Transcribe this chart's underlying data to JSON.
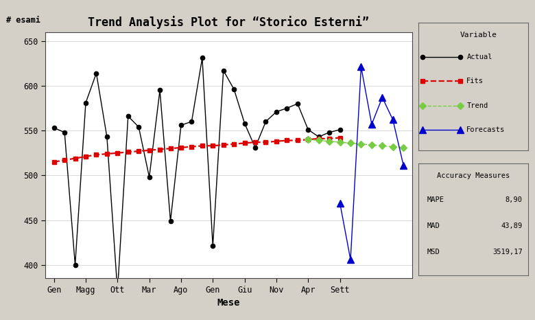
{
  "title": "Trend Analysis Plot for “Storico Esterni”",
  "ylabel": "# esami",
  "xlabel": "Mese",
  "background_color": "#d4d0c8",
  "plot_bg_color": "#ffffff",
  "x_tick_labels": [
    "Gen",
    "Magg",
    "Ott",
    "Mar",
    "Ago",
    "Gen",
    "Giu",
    "Nov",
    "Apr",
    "Sett"
  ],
  "x_tick_positions": [
    0,
    3,
    6,
    9,
    12,
    15,
    18,
    21,
    24,
    27
  ],
  "actual_x": [
    0,
    1,
    2,
    3,
    4,
    5,
    6,
    7,
    8,
    9,
    10,
    11,
    12,
    13,
    14,
    15,
    16,
    17,
    18,
    19,
    20,
    21,
    22,
    23,
    24,
    25,
    26,
    27
  ],
  "actual_y": [
    553,
    548,
    400,
    581,
    614,
    543,
    371,
    566,
    554,
    498,
    595,
    449,
    556,
    560,
    631,
    421,
    617,
    596,
    558,
    531,
    560,
    571,
    575,
    580,
    551,
    543,
    548,
    551
  ],
  "fits_x": [
    0,
    1,
    2,
    3,
    4,
    5,
    6,
    7,
    8,
    9,
    10,
    11,
    12,
    13,
    14,
    15,
    16,
    17,
    18,
    19,
    20,
    21,
    22,
    23,
    24,
    25,
    26,
    27
  ],
  "fits_y": [
    515,
    517,
    519,
    521,
    523,
    524,
    525,
    526,
    527,
    528,
    529,
    530,
    531,
    532,
    533,
    533,
    534,
    535,
    536,
    537,
    537,
    538,
    539,
    539,
    540,
    541,
    541,
    542
  ],
  "trend_x": [
    24,
    25,
    26,
    27,
    28,
    29,
    30,
    31,
    32,
    33
  ],
  "trend_y": [
    540,
    539,
    538,
    537,
    536,
    535,
    534,
    533,
    532,
    531
  ],
  "forecast_x": [
    27,
    28,
    29,
    30,
    31,
    32,
    33
  ],
  "forecast_y": [
    469,
    406,
    621,
    557,
    587,
    562,
    511
  ],
  "ylim": [
    385,
    660
  ],
  "yticks": [
    400,
    450,
    500,
    550,
    600,
    650
  ],
  "xlim": [
    -0.8,
    33.8
  ],
  "actual_color": "#000000",
  "fits_color": "#dd0000",
  "trend_color": "#77cc44",
  "forecast_color": "#0000cc",
  "legend1_title": "Variable",
  "legend2_title": "Accuracy Measures",
  "mape": "8,90",
  "mad": "43,89",
  "msd": "3519,17"
}
